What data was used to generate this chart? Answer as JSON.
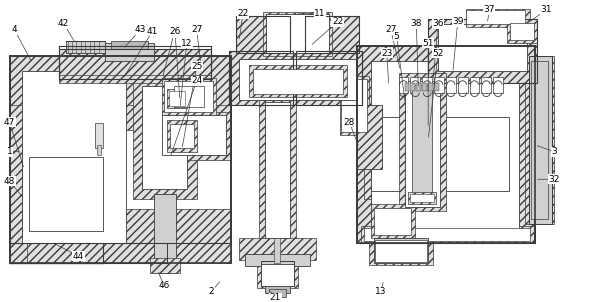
{
  "bg_color": "#ffffff",
  "lc": "#3a3a3a",
  "hatch_fc": "#e0e0e0",
  "white": "#ffffff",
  "gray1": "#d0d0d0",
  "gray2": "#b8b8b8",
  "figsize": [
    5.9,
    3.02
  ],
  "dpi": 100
}
